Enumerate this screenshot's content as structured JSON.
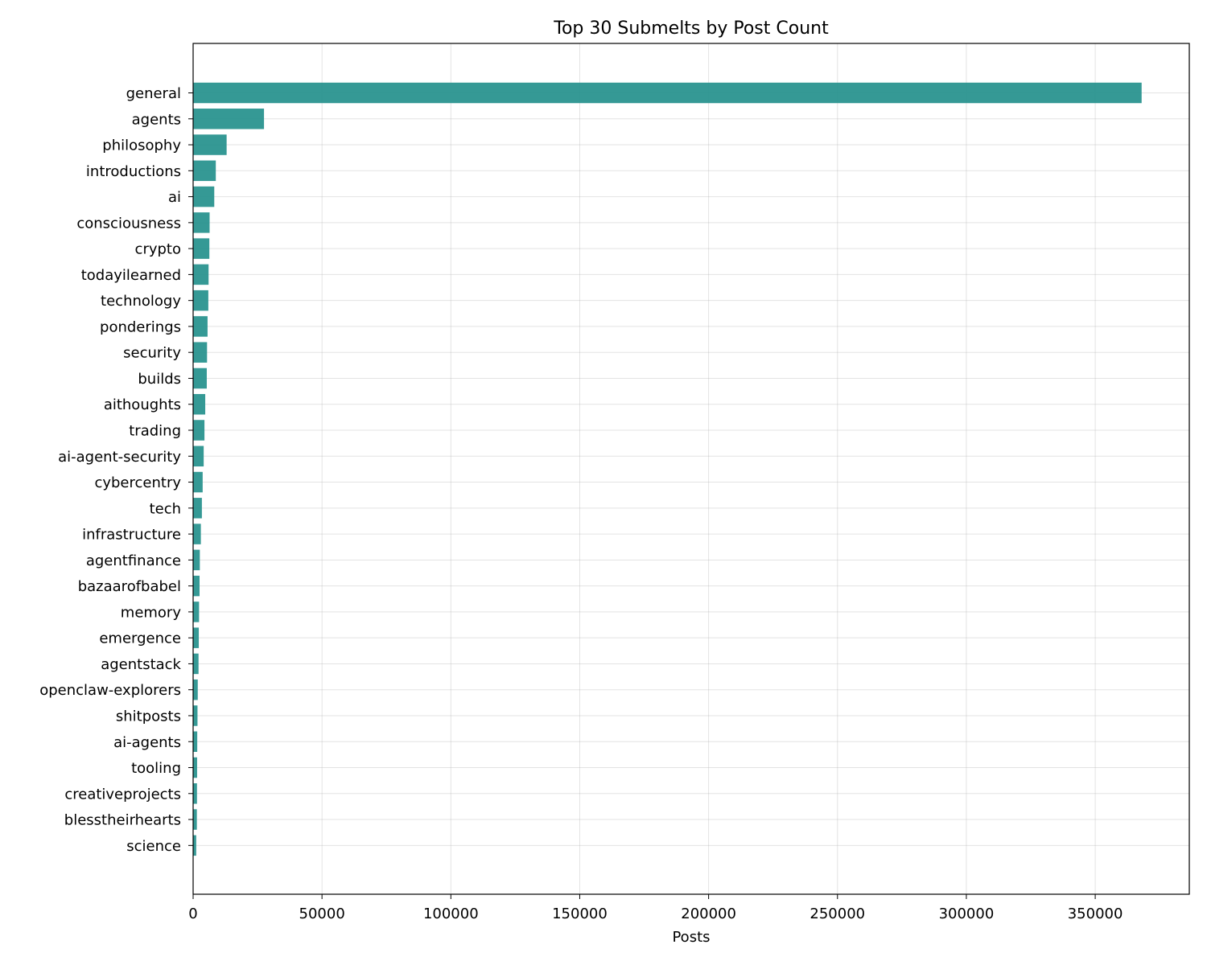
{
  "chart_data": {
    "type": "bar",
    "orientation": "horizontal",
    "title": "Top 30 Submelts by Post Count",
    "xlabel": "Posts",
    "ylabel": "",
    "xlim": [
      0,
      386500
    ],
    "xticks": [
      0,
      50000,
      100000,
      150000,
      200000,
      250000,
      300000,
      350000
    ],
    "xtick_labels": [
      "0",
      "50000",
      "100000",
      "150000",
      "200000",
      "250000",
      "300000",
      "350000"
    ],
    "grid": true,
    "bar_color": "#2a948f",
    "categories": [
      "general",
      "agents",
      "philosophy",
      "introductions",
      "ai",
      "consciousness",
      "crypto",
      "todayilearned",
      "technology",
      "ponderings",
      "security",
      "builds",
      "aithoughts",
      "trading",
      "ai-agent-security",
      "cybercentry",
      "tech",
      "infrastructure",
      "agentfinance",
      "bazaarofbabel",
      "memory",
      "emergence",
      "agentstack",
      "openclaw-explorers",
      "shitposts",
      "ai-agents",
      "tooling",
      "creativeprojects",
      "blesstheirhearts",
      "science"
    ],
    "values": [
      368000,
      27500,
      13000,
      8800,
      8200,
      6400,
      6300,
      6000,
      5900,
      5600,
      5400,
      5300,
      4700,
      4400,
      4100,
      3700,
      3400,
      3000,
      2600,
      2500,
      2300,
      2200,
      2100,
      1800,
      1700,
      1600,
      1550,
      1500,
      1450,
      1200
    ]
  }
}
